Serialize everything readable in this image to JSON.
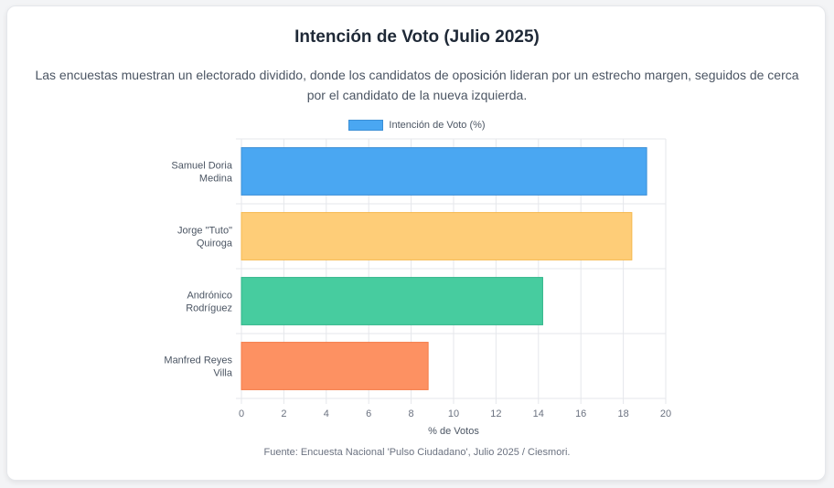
{
  "header": {
    "title": "Intención de Voto (Julio 2025)",
    "subtitle": "Las encuestas muestran un electorado dividido, donde los candidatos de oposición lideran por un estrecho margen, seguidos de cerca por el candidato de la nueva izquierda."
  },
  "footer": {
    "source": "Fuente: Encuesta Nacional 'Pulso Ciudadano', Julio 2025 / Ciesmori."
  },
  "chart_data": {
    "type": "bar",
    "orientation": "horizontal",
    "title": "Intención de Voto (Julio 2025)",
    "xlabel": "% de Votos",
    "ylabel": "",
    "xlim": [
      0,
      20
    ],
    "xticks": [
      0,
      2,
      4,
      6,
      8,
      10,
      12,
      14,
      16,
      18,
      20
    ],
    "grid": true,
    "legend_position": "top-center",
    "categories": [
      [
        "Samuel Doria",
        "Medina"
      ],
      [
        "Jorge \"Tuto\"",
        "Quiroga"
      ],
      [
        "Andrónico",
        "Rodríguez"
      ],
      [
        "Manfred Reyes",
        "Villa"
      ]
    ],
    "series": [
      {
        "name": "Intención de Voto (%)",
        "values": [
          19.1,
          18.4,
          14.2,
          8.8
        ],
        "colors": [
          "#4aa7f2",
          "#fecd78",
          "#47cc9f",
          "#fd9162"
        ],
        "borders": [
          "#3b8fd6",
          "#f5b94d",
          "#2fb588",
          "#f57a45"
        ]
      }
    ]
  }
}
